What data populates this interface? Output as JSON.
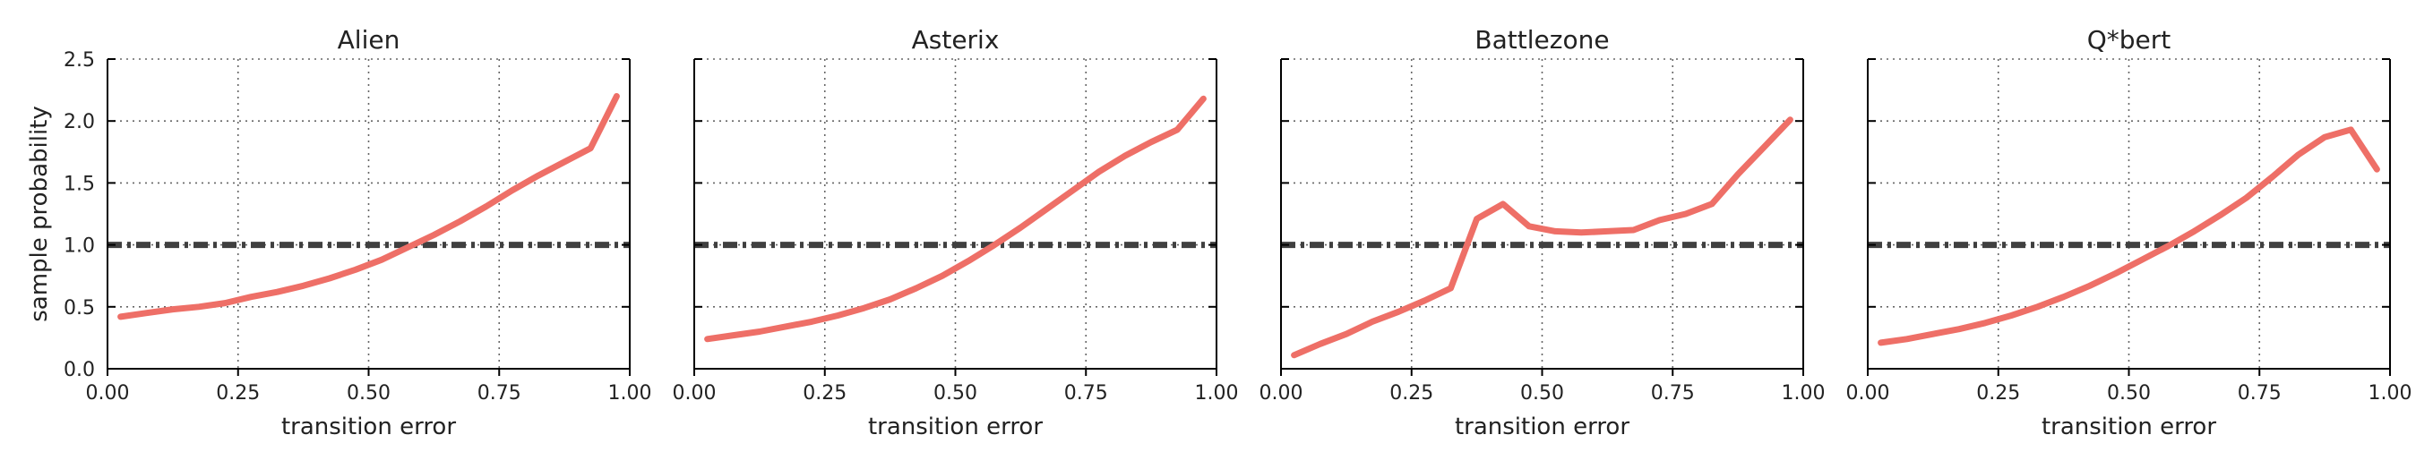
{
  "chart_data": [
    {
      "type": "line",
      "title": "Alien",
      "xlabel": "transition error",
      "ylabel": "sample probability",
      "xlim": [
        0,
        1
      ],
      "ylim": [
        0,
        2.5
      ],
      "xticks": [
        "0.00",
        "0.25",
        "0.50",
        "0.75",
        "1.00"
      ],
      "yticks": [
        "0.0",
        "0.5",
        "1.0",
        "1.5",
        "2.0",
        "2.5"
      ],
      "grid": true,
      "reference_line": 1.0,
      "series": [
        {
          "x": [
            0.025,
            0.075,
            0.125,
            0.175,
            0.225,
            0.275,
            0.325,
            0.375,
            0.425,
            0.475,
            0.525,
            0.575,
            0.625,
            0.675,
            0.725,
            0.775,
            0.825,
            0.875,
            0.925,
            0.975
          ],
          "y": [
            0.42,
            0.45,
            0.48,
            0.5,
            0.53,
            0.58,
            0.62,
            0.67,
            0.73,
            0.8,
            0.88,
            0.98,
            1.08,
            1.19,
            1.31,
            1.44,
            1.56,
            1.67,
            1.78,
            2.2
          ]
        }
      ]
    },
    {
      "type": "line",
      "title": "Asterix",
      "xlabel": "transition error",
      "ylabel": "",
      "xlim": [
        0,
        1
      ],
      "ylim": [
        0,
        2.5
      ],
      "xticks": [
        "0.00",
        "0.25",
        "0.50",
        "0.75",
        "1.00"
      ],
      "yticks": [],
      "grid": true,
      "reference_line": 1.0,
      "series": [
        {
          "x": [
            0.025,
            0.075,
            0.125,
            0.175,
            0.225,
            0.275,
            0.325,
            0.375,
            0.425,
            0.475,
            0.525,
            0.575,
            0.625,
            0.675,
            0.725,
            0.775,
            0.825,
            0.875,
            0.925,
            0.975
          ],
          "y": [
            0.24,
            0.27,
            0.3,
            0.34,
            0.38,
            0.43,
            0.49,
            0.56,
            0.65,
            0.75,
            0.87,
            1.0,
            1.14,
            1.29,
            1.44,
            1.59,
            1.72,
            1.83,
            1.93,
            2.18
          ]
        }
      ]
    },
    {
      "type": "line",
      "title": "Battlezone",
      "xlabel": "transition error",
      "ylabel": "",
      "xlim": [
        0,
        1
      ],
      "ylim": [
        0,
        2.5
      ],
      "xticks": [
        "0.00",
        "0.25",
        "0.50",
        "0.75",
        "1.00"
      ],
      "yticks": [],
      "grid": true,
      "reference_line": 1.0,
      "series": [
        {
          "x": [
            0.025,
            0.075,
            0.125,
            0.175,
            0.225,
            0.275,
            0.325,
            0.375,
            0.425,
            0.475,
            0.525,
            0.575,
            0.625,
            0.675,
            0.725,
            0.775,
            0.825,
            0.875,
            0.925,
            0.975
          ],
          "y": [
            0.11,
            0.2,
            0.28,
            0.38,
            0.46,
            0.55,
            0.65,
            1.21,
            1.33,
            1.15,
            1.11,
            1.1,
            1.11,
            1.12,
            1.2,
            1.25,
            1.33,
            1.57,
            1.79,
            2.01
          ]
        }
      ]
    },
    {
      "type": "line",
      "title": "Q*bert",
      "xlabel": "transition error",
      "ylabel": "",
      "xlim": [
        0,
        1
      ],
      "ylim": [
        0,
        2.5
      ],
      "xticks": [
        "0.00",
        "0.25",
        "0.50",
        "0.75",
        "1.00"
      ],
      "yticks": [],
      "grid": true,
      "reference_line": 1.0,
      "series": [
        {
          "x": [
            0.025,
            0.075,
            0.125,
            0.175,
            0.225,
            0.275,
            0.325,
            0.375,
            0.425,
            0.475,
            0.525,
            0.575,
            0.625,
            0.675,
            0.725,
            0.775,
            0.825,
            0.875,
            0.925,
            0.975
          ],
          "y": [
            0.21,
            0.24,
            0.28,
            0.32,
            0.37,
            0.43,
            0.5,
            0.58,
            0.67,
            0.77,
            0.88,
            0.99,
            1.11,
            1.24,
            1.38,
            1.55,
            1.73,
            1.87,
            1.93,
            1.61
          ]
        }
      ]
    }
  ],
  "colors": {
    "series": "#ee6f67",
    "reference": "#404040"
  }
}
